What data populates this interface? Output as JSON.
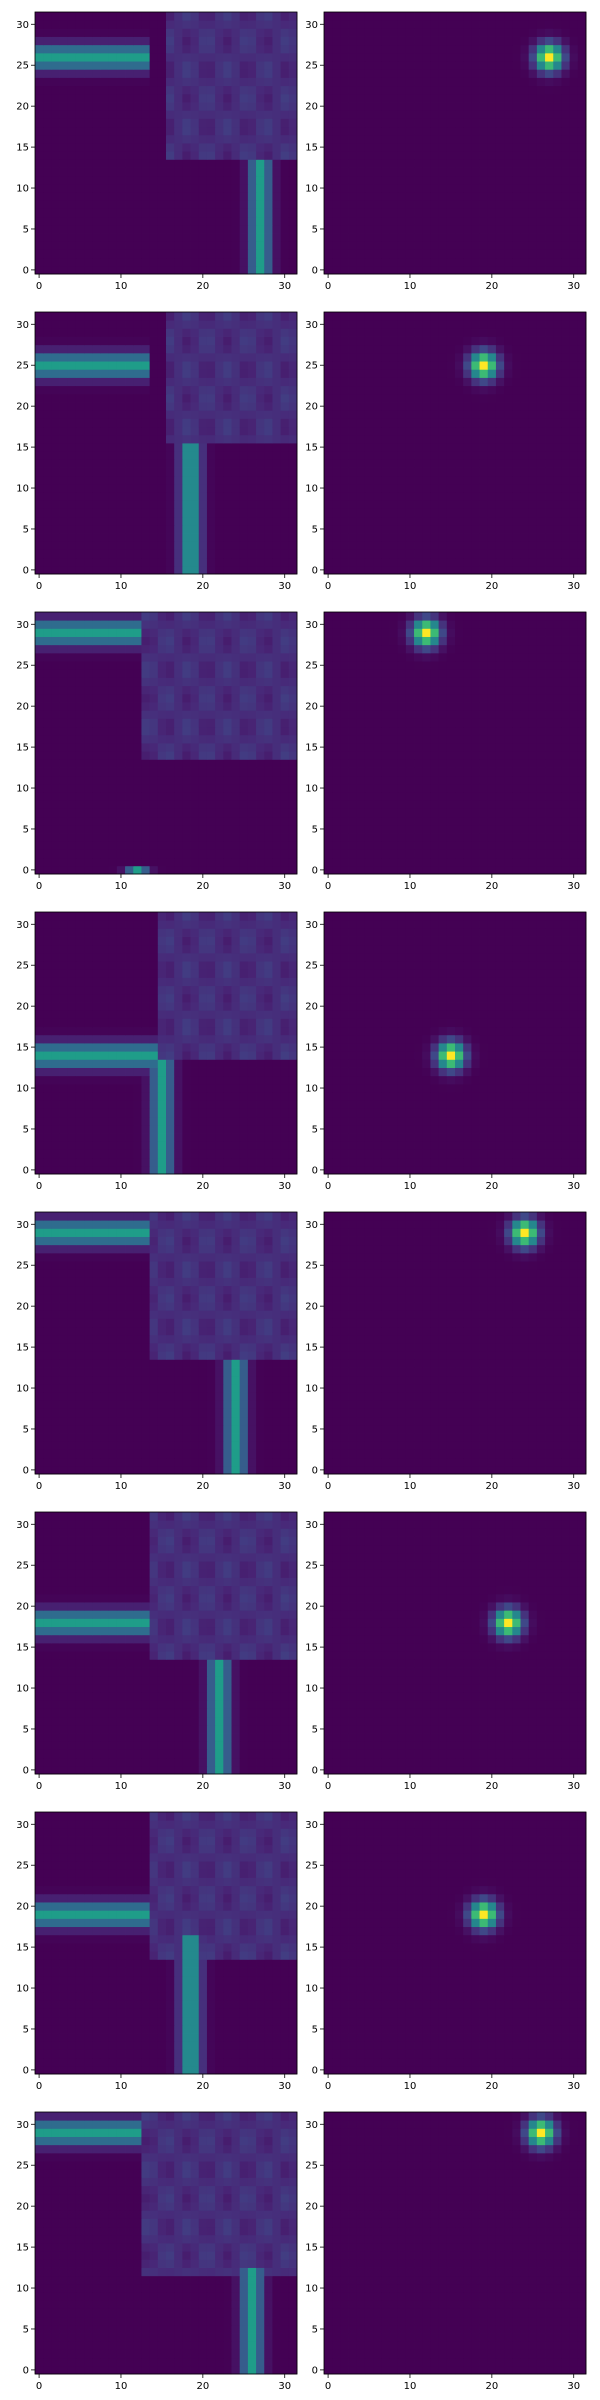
{
  "chart_data": {
    "type": "heatmap",
    "layout": {
      "rows": 8,
      "cols": 2
    },
    "grid_size": 32,
    "xlim": [
      -0.5,
      31.5
    ],
    "ylim": [
      -0.5,
      31.5
    ],
    "x_ticks": [
      0,
      10,
      20,
      30
    ],
    "y_ticks": [
      0,
      5,
      10,
      15,
      20,
      25,
      30
    ],
    "origin": "lower",
    "colormap": "viridis",
    "grid": false,
    "rows": [
      {
        "path": {
          "horiz_y": 26,
          "horiz_x_end": 13,
          "vert_x": 27,
          "vert_y_top": 13,
          "blob_x": [
            16,
            31
          ],
          "blob_y": [
            14,
            31
          ]
        },
        "target": {
          "x": 27,
          "y": 26
        }
      },
      {
        "path": {
          "horiz_y": 25,
          "horiz_x_end": 13,
          "vert_x": 18.5,
          "vert_y_top": 15,
          "blob_x": [
            16,
            31
          ],
          "blob_y": [
            16,
            31
          ]
        },
        "target": {
          "x": 19,
          "y": 25
        }
      },
      {
        "path": {
          "horiz_y": 29,
          "horiz_x_end": 12,
          "vert_x": 12,
          "vert_y_top": 0,
          "blob_x": [
            13,
            31
          ],
          "blob_y": [
            14,
            31
          ]
        },
        "target": {
          "x": 12,
          "y": 29
        }
      },
      {
        "path": {
          "horiz_y": 14,
          "horiz_x_end": 14,
          "vert_x": 15,
          "vert_y_top": 13,
          "blob_x": [
            15,
            31
          ],
          "blob_y": [
            14,
            31
          ]
        },
        "target": {
          "x": 15,
          "y": 14
        }
      },
      {
        "path": {
          "horiz_y": 29,
          "horiz_x_end": 13,
          "vert_x": 24,
          "vert_y_top": 13,
          "blob_x": [
            14,
            31
          ],
          "blob_y": [
            14,
            31
          ]
        },
        "target": {
          "x": 24,
          "y": 29
        }
      },
      {
        "path": {
          "horiz_y": 18,
          "horiz_x_end": 13,
          "vert_x": 22,
          "vert_y_top": 13,
          "blob_x": [
            14,
            31
          ],
          "blob_y": [
            14,
            31
          ]
        },
        "target": {
          "x": 22,
          "y": 18
        }
      },
      {
        "path": {
          "horiz_y": 19,
          "horiz_x_end": 13,
          "vert_x": 18.5,
          "vert_y_top": 16,
          "blob_x": [
            14,
            31
          ],
          "blob_y": [
            14,
            31
          ]
        },
        "target": {
          "x": 19,
          "y": 19
        }
      },
      {
        "path": {
          "horiz_y": 29,
          "horiz_x_end": 12,
          "vert_x": 26,
          "vert_y_top": 12,
          "blob_x": [
            13,
            31
          ],
          "blob_y": [
            12,
            31
          ]
        },
        "target": {
          "x": 26,
          "y": 29
        }
      }
    ]
  }
}
